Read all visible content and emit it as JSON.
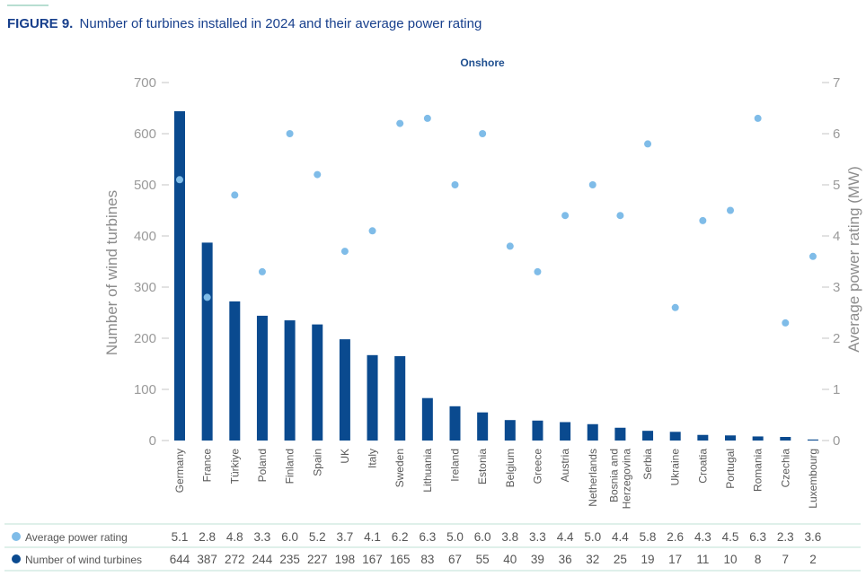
{
  "chart_data": {
    "type": "bar",
    "figure_label": "FIGURE 9.",
    "title": "Number of turbines installed in 2024 and their average power rating",
    "subtitle": "Onshore",
    "categories": [
      "Germany",
      "France",
      "Türkiye",
      "Poland",
      "Finland",
      "Spain",
      "UK",
      "Italy",
      "Sweden",
      "Lithuania",
      "Ireland",
      "Estonia",
      "Belgium",
      "Greece",
      "Austria",
      "Netherlands",
      "Bosnia and Herzegovina",
      "Serbia",
      "Ukraine",
      "Croatia",
      "Portugal",
      "Romania",
      "Czechia",
      "Luxembourg"
    ],
    "series": [
      {
        "name": "Number of wind turbines",
        "type": "bar",
        "color": "#0a4a8f",
        "values": [
          644,
          387,
          272,
          244,
          235,
          227,
          198,
          167,
          165,
          83,
          67,
          55,
          40,
          39,
          36,
          32,
          25,
          19,
          17,
          11,
          10,
          8,
          7,
          2
        ]
      },
      {
        "name": "Average power rating",
        "type": "scatter",
        "color": "#7fbce8",
        "values": [
          5.1,
          2.8,
          4.8,
          3.3,
          6.0,
          5.2,
          3.7,
          4.1,
          6.2,
          6.3,
          5.0,
          6.0,
          3.8,
          3.3,
          4.4,
          5.0,
          4.4,
          5.8,
          2.6,
          4.3,
          4.5,
          6.3,
          2.3,
          3.6
        ]
      }
    ],
    "xlabel": "",
    "ylabel": "Number of wind turbines",
    "ylabel_right": "Average power rating (MW)",
    "ylim": [
      0,
      700
    ],
    "ylim_right": [
      0,
      7
    ],
    "yticks": [
      0,
      100,
      200,
      300,
      400,
      500,
      600,
      700
    ],
    "yticks_right": [
      0,
      1,
      2,
      3,
      4,
      5,
      6,
      7
    ],
    "grid": false
  }
}
